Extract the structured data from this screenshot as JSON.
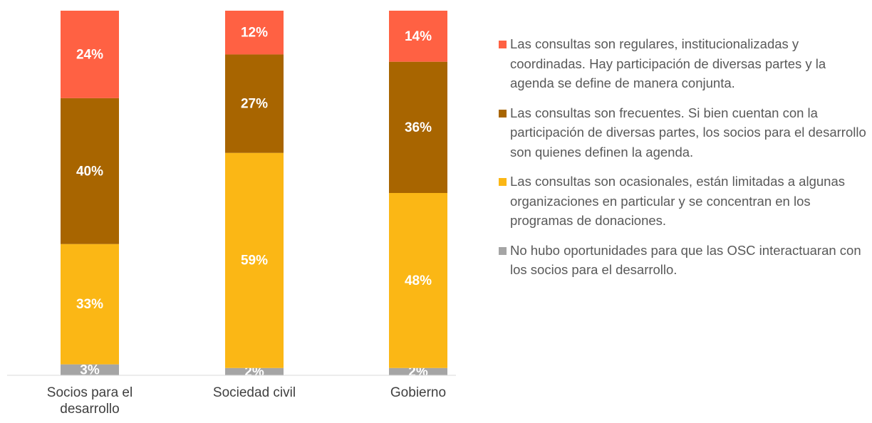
{
  "chart_data": {
    "type": "stacked_bar",
    "categories": [
      "Socios para el desarrollo",
      "Sociedad civil",
      "Gobierno"
    ],
    "ylim": [
      0,
      100
    ],
    "series": [
      {
        "name": "No hubo oportunidades para que las OSC interactuaran con los socios para el desarrollo.",
        "color": "#a5a5a5",
        "values": [
          3,
          2,
          2
        ],
        "value_labels": [
          "3%",
          "2%",
          "2%"
        ]
      },
      {
        "name": "Las consultas son ocasionales, están limitadas a algunas organizaciones en particular y se concentran en los programas de donaciones.",
        "color": "#fbb715",
        "values": [
          33,
          59,
          48
        ],
        "value_labels": [
          "33%",
          "59%",
          "48%"
        ]
      },
      {
        "name": "Las consultas son frecuentes. Si bien cuentan con la participación de diversas partes, los socios para el desarrollo son quienes definen la agenda.",
        "color": "#a86500",
        "values": [
          40,
          27,
          36
        ],
        "value_labels": [
          "40%",
          "27%",
          "36%"
        ]
      },
      {
        "name": "Las consultas son regulares, institucionalizadas y coordinadas. Hay participación de diversas partes y la agenda se define de manera conjunta.",
        "color": "#ff6143",
        "values": [
          24,
          12,
          14
        ],
        "value_labels": [
          "24%",
          "12%",
          "14%"
        ]
      }
    ]
  }
}
